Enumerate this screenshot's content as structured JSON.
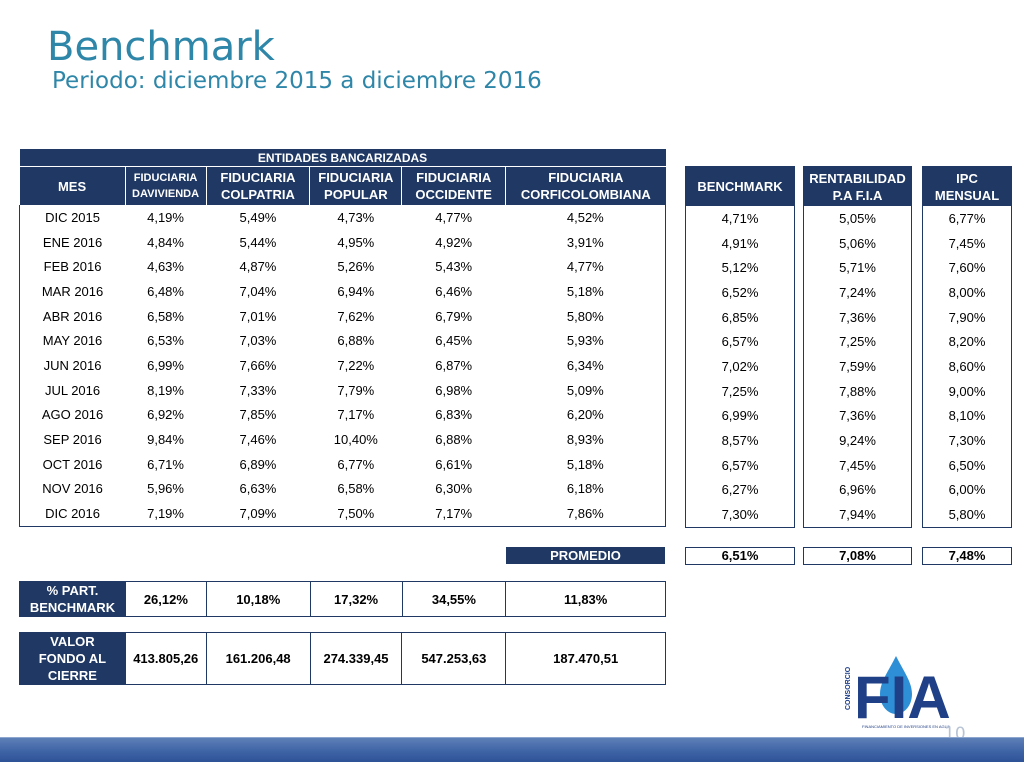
{
  "title": "Benchmark",
  "subtitle": "Periodo: diciembre 2015 a diciembre 2016",
  "group_header": "ENTIDADES BANCARIZADAS",
  "columns": {
    "mes": "MES",
    "davivienda": [
      "FIDUCIARIA",
      "DAVIVIENDA"
    ],
    "colpatria": [
      "FIDUCIARIA",
      "COLPATRIA"
    ],
    "popular": [
      "FIDUCIARIA",
      "POPULAR"
    ],
    "occidente": [
      "FIDUCIARIA",
      "OCCIDENTE"
    ],
    "corficolombiana": [
      "FIDUCIARIA",
      "CORFICOLOMBIANA"
    ],
    "benchmark": "BENCHMARK",
    "rentabilidad": [
      "RENTABILIDAD",
      "P.A F.I.A"
    ],
    "ipc": [
      "IPC",
      "MENSUAL"
    ]
  },
  "rows": [
    [
      "DIC 2015",
      "4,19%",
      "5,49%",
      "4,73%",
      "4,77%",
      "4,52%",
      "4,71%",
      "5,05%",
      "6,77%"
    ],
    [
      "ENE 2016",
      "4,84%",
      "5,44%",
      "4,95%",
      "4,92%",
      "3,91%",
      "4,91%",
      "5,06%",
      "7,45%"
    ],
    [
      "FEB 2016",
      "4,63%",
      "4,87%",
      "5,26%",
      "5,43%",
      "4,77%",
      "5,12%",
      "5,71%",
      "7,60%"
    ],
    [
      "MAR 2016",
      "6,48%",
      "7,04%",
      "6,94%",
      "6,46%",
      "5,18%",
      "6,52%",
      "7,24%",
      "8,00%"
    ],
    [
      "ABR 2016",
      "6,58%",
      "7,01%",
      "7,62%",
      "6,79%",
      "5,80%",
      "6,85%",
      "7,36%",
      "7,90%"
    ],
    [
      "MAY 2016",
      "6,53%",
      "7,03%",
      "6,88%",
      "6,45%",
      "5,93%",
      "6,57%",
      "7,25%",
      "8,20%"
    ],
    [
      "JUN 2016",
      "6,99%",
      "7,66%",
      "7,22%",
      "6,87%",
      "6,34%",
      "7,02%",
      "7,59%",
      "8,60%"
    ],
    [
      "JUL 2016",
      "8,19%",
      "7,33%",
      "7,79%",
      "6,98%",
      "5,09%",
      "7,25%",
      "7,88%",
      "9,00%"
    ],
    [
      "AGO 2016",
      "6,92%",
      "7,85%",
      "7,17%",
      "6,83%",
      "6,20%",
      "6,99%",
      "7,36%",
      "8,10%"
    ],
    [
      "SEP 2016",
      "9,84%",
      "7,46%",
      "10,40%",
      "6,88%",
      "8,93%",
      "8,57%",
      "9,24%",
      "7,30%"
    ],
    [
      "OCT 2016",
      "6,71%",
      "6,89%",
      "6,77%",
      "6,61%",
      "5,18%",
      "6,57%",
      "7,45%",
      "6,50%"
    ],
    [
      "NOV 2016",
      "5,96%",
      "6,63%",
      "6,58%",
      "6,30%",
      "6,18%",
      "6,27%",
      "6,96%",
      "6,00%"
    ],
    [
      "DIC 2016",
      "7,19%",
      "7,09%",
      "7,50%",
      "7,17%",
      "7,86%",
      "7,30%",
      "7,94%",
      "5,80%"
    ]
  ],
  "promedio": {
    "label": "PROMEDIO",
    "benchmark": "6,51%",
    "rentabilidad": "7,08%",
    "ipc": "7,48%"
  },
  "participacion": {
    "label": [
      "% PART.",
      "BENCHMARK"
    ],
    "values": [
      "26,12%",
      "10,18%",
      "17,32%",
      "34,55%",
      "11,83%"
    ]
  },
  "valor_fondo": {
    "label": [
      "VALOR",
      "FONDO AL",
      "CIERRE"
    ],
    "values": [
      "413.805,26",
      "161.206,48",
      "274.339,45",
      "547.253,63",
      "187.470,51"
    ]
  },
  "logo": {
    "side_text": "CONSORCIO",
    "main_text": "FIA",
    "tagline": "FINANCIAMIENTO DE INVERSIONES EN AGUA"
  },
  "page_number": "10",
  "colors": {
    "title": "#2e86a8",
    "header_bg": "#1f3864",
    "footer_bar": "#3f64a6"
  }
}
